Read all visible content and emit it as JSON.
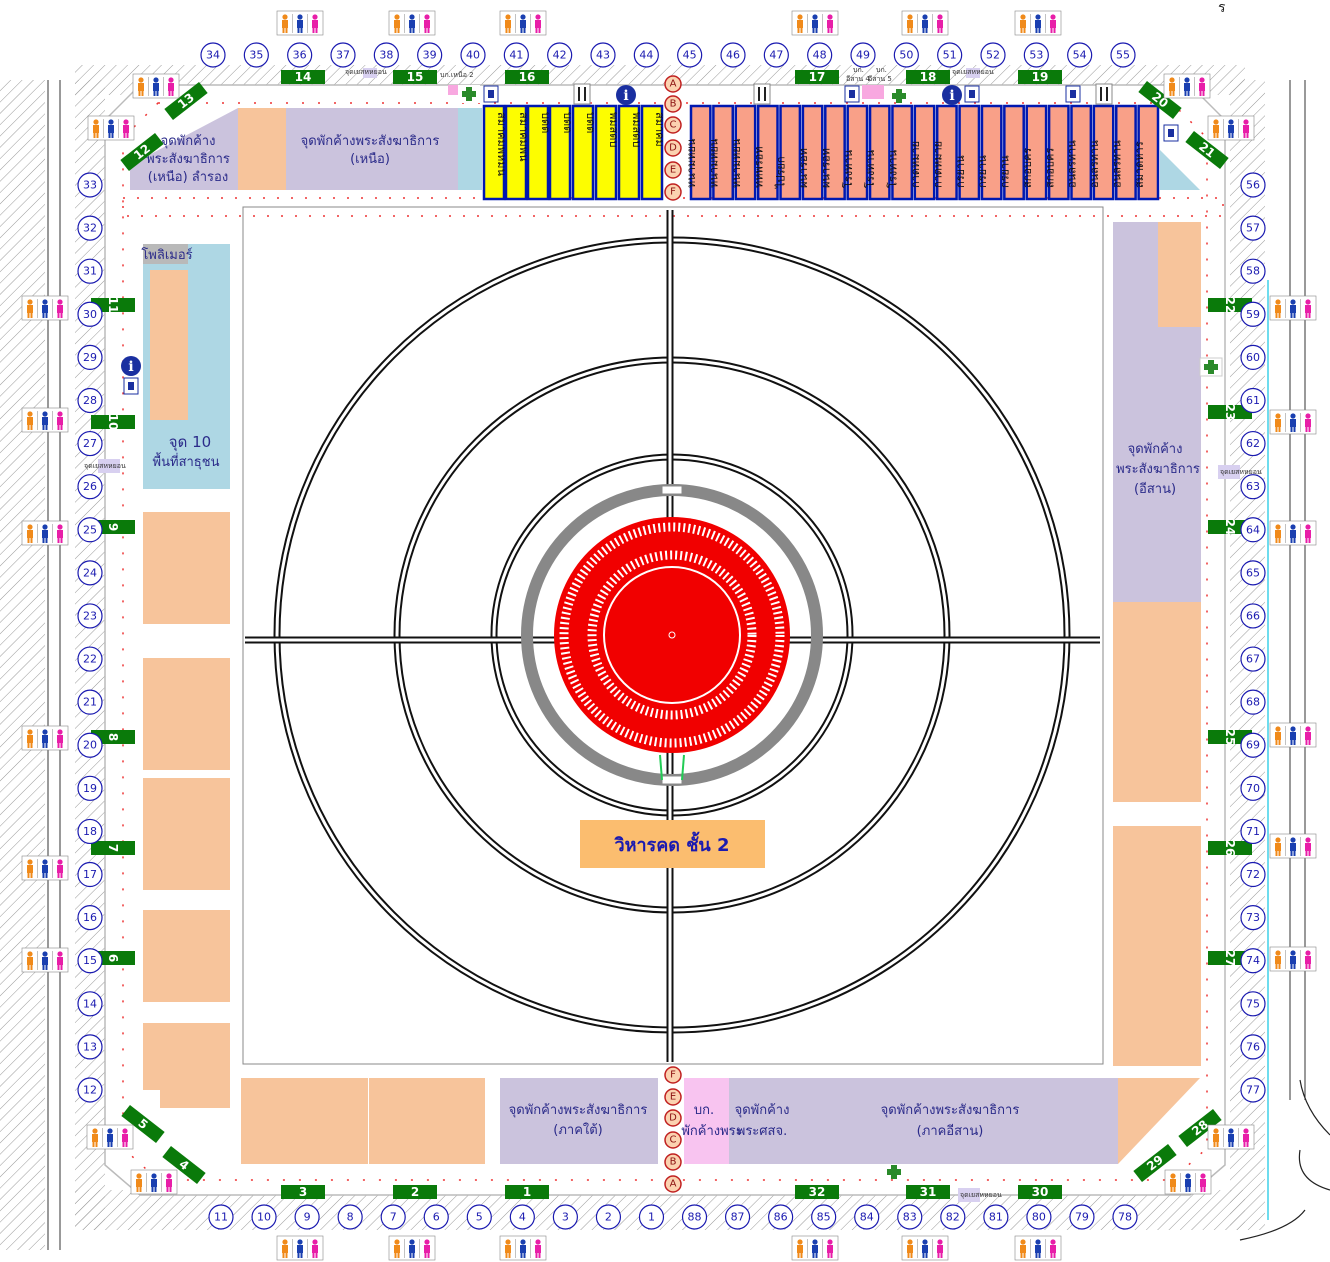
{
  "corner_mark": "ร",
  "title_label": "วิหารคด ชั้น 2",
  "zones": {
    "north_left": {
      "line1": "จุดพักค้าง",
      "line2": "พระสังฆาธิการ",
      "line3": "(เหนือ) ลำรอง"
    },
    "north_main": {
      "line1": "จุดพักค้างพระสังฆาธิการ",
      "line2": "(เหนือ)"
    },
    "west": {
      "top": "โพลิเมอร์",
      "line1": "จุด 10",
      "line2": "พื้นที่สาธุชน"
    },
    "east": {
      "line1": "จุดพักค้าง",
      "line2": "พระสังฆาธิการ",
      "line3": "(อีสาน)"
    },
    "south_mid": {
      "line1": "จุดพักค้างพระสังฆาธิการ",
      "line2": "(ภาคใต้)"
    },
    "south_pink": {
      "line1": "บก.",
      "line2": "พักค้างพระ"
    },
    "south_small": {
      "line1": "จุดพักค้าง",
      "line2": "พระศสจ."
    },
    "south_right": {
      "line1": "จุดพักค้างพระสังฆาธิการ",
      "line2": "(ภาคอีสาน)"
    }
  },
  "small_labels": {
    "n1": "จุดเยสหหยอน",
    "n2": "บก.เหนือ 2",
    "n3": "บก.",
    "n4": "อีสาน 4",
    "n5": "บก.",
    "n6": "อีสาน 5",
    "n7": "จุดเยสหหยอน",
    "w1": "จุดเยสหหยอน",
    "e1": "จุดเยสหหยอน",
    "s1": "จุดเยสหหยอน"
  },
  "aisle_letters_top": [
    "A",
    "B",
    "C",
    "D",
    "E",
    "F"
  ],
  "aisle_letters_bottom": [
    "F",
    "E",
    "D",
    "C",
    "B",
    "A"
  ],
  "booths_yellow": [
    "สมาคมพหมน",
    "สมาคมพน",
    "บดต",
    "บดต",
    "บดต",
    "พมสดบ",
    "พมสดบ",
    "สมาคม"
  ],
  "booths_salmon": [
    "หนามหยน",
    "หนามหยน",
    "หนามหยน",
    "ทหพรอท",
    "ไปรยก",
    "ผนารอท",
    "ผนารอท",
    "โรงทาน",
    "โรงทาน",
    "โรงทาน",
    "กาดหมาย",
    "กาดหมาย",
    "กรยาน",
    "กรยาน",
    "กรยาน",
    "สกอบคร",
    "สกอบคร",
    "อนลรทาน",
    "อนลรทาน",
    "อนลรทาน",
    "สมาดหาร"
  ],
  "gates": {
    "top": [
      "14",
      "15",
      "16",
      "17",
      "18",
      "19"
    ],
    "bottom": [
      "3",
      "2",
      "1",
      "32",
      "31",
      "30"
    ],
    "left": [
      "11",
      "10",
      "9",
      "8",
      "7",
      "6"
    ],
    "right": [
      "22",
      "23",
      "24",
      "25",
      "26",
      "27"
    ],
    "diag": [
      "13",
      "12",
      "5",
      "4",
      "20",
      "21",
      "28",
      "29"
    ]
  },
  "circles": {
    "top": [
      "34",
      "35",
      "36",
      "37",
      "38",
      "39",
      "40",
      "41",
      "42",
      "43",
      "44",
      "45",
      "46",
      "47",
      "48",
      "49",
      "50",
      "51",
      "52",
      "53",
      "54",
      "55"
    ],
    "left": [
      "33",
      "32",
      "31",
      "30",
      "29",
      "28",
      "27",
      "26",
      "25",
      "24",
      "23",
      "22",
      "21",
      "20",
      "19",
      "18",
      "17",
      "16",
      "15",
      "14",
      "13",
      "12"
    ],
    "right": [
      "56",
      "57",
      "58",
      "59",
      "60",
      "61",
      "62",
      "63",
      "64",
      "65",
      "66",
      "67",
      "68",
      "69",
      "70",
      "71",
      "72",
      "73",
      "74",
      "75",
      "76",
      "77"
    ],
    "bottom": [
      "11",
      "10",
      "9",
      "8",
      "7",
      "6",
      "5",
      "4",
      "3",
      "2",
      "1",
      "88",
      "87",
      "86",
      "85",
      "84",
      "83",
      "82",
      "81",
      "80",
      "79",
      "78"
    ]
  },
  "colors": {
    "red_center": "#f10000",
    "salmon": "#f7c49b",
    "lavender": "#cbc3dd",
    "light_blue": "#aed7e4",
    "yellow_booth": "#fdfd00",
    "salmon_booth": "#f9a088",
    "gate_green": "#0a7a0a",
    "circle_blue": "#1a1ab0",
    "pink_zone": "#f8c4f0",
    "orange_label": "#fbbd6f",
    "title_text": "#1a1ab0"
  },
  "icons": [
    "restroom-icon",
    "first-aid-icon",
    "info-icon",
    "trash-icon",
    "restaurant-icon"
  ]
}
